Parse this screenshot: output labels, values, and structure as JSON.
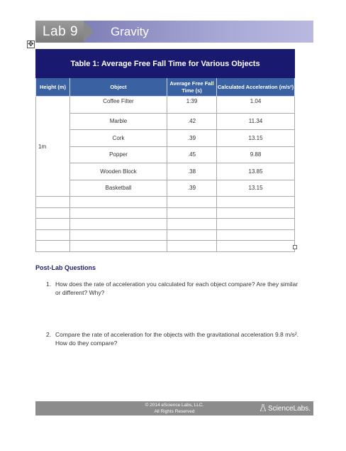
{
  "header": {
    "lab": "Lab 9",
    "title": "Gravity"
  },
  "table": {
    "title": "Table 1: Average Free Fall Time for Various Objects",
    "columns": [
      "Height (m)",
      "Object",
      "Average Free Fall Time (s)",
      "Calculated Acceleration (m/s²)"
    ],
    "height_value": "1m",
    "rows": [
      {
        "object": "Coffee Filter",
        "time": "1:39",
        "accel": "1.04"
      },
      {
        "object": "Marble",
        "time": ".42",
        "accel": "11.34"
      },
      {
        "object": "Cork",
        "time": ".39",
        "accel": "13.15"
      },
      {
        "object": "Popper",
        "time": ".45",
        "accel": "9.88"
      },
      {
        "object": "Wooden Block",
        "time": ".38",
        "accel": "13.85"
      },
      {
        "object": "Basketball",
        "time": ".39",
        "accel": "13.15"
      }
    ]
  },
  "post_lab": {
    "title": "Post-Lab Questions",
    "questions": [
      {
        "num": "1.",
        "text": "How does the rate of acceleration you calculated for each object compare? Are they similar or different? Why?"
      },
      {
        "num": "2.",
        "text": "Compare the rate of acceleration for the objects with the gravitational acceleration 9.8 m/s². How do they compare?"
      }
    ]
  },
  "footer": {
    "line1": "© 2014 eScience Labs, LLC.",
    "line2": "All Rights Reserved",
    "logo": "ScienceLabs."
  },
  "icons": {
    "move": "move-handle-icon",
    "flask": "flask-icon"
  }
}
